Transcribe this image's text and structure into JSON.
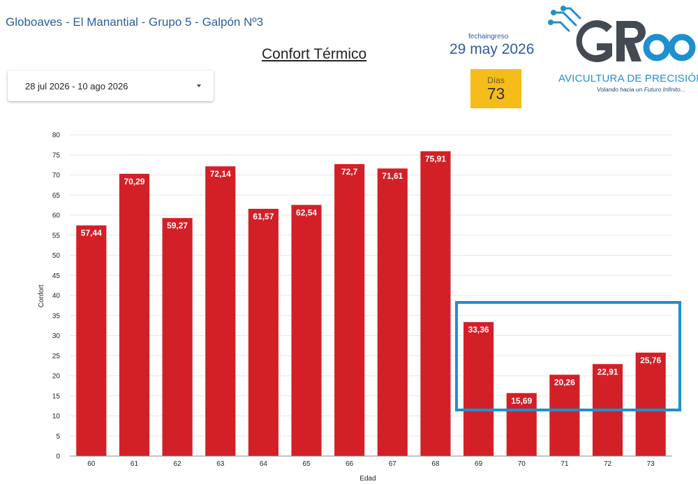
{
  "header": {
    "site_title": "Globoaves - El Manantial - Grupo 5 - Galpón Nº3",
    "page_title": "Confort Térmico"
  },
  "filter": {
    "date_range": "28 jul 2026 - 10 ago 2026"
  },
  "scorecard_fecha": {
    "label": "fechaingreso",
    "value": "29 may 2026"
  },
  "scorecard_dias": {
    "label": "Días",
    "value": "73"
  },
  "logo": {
    "tagline": "AVICULTURA DE PRECISIÓN",
    "slogan": "Volando hacia un Futuro Infinito..."
  },
  "colors": {
    "bar": "#d32027",
    "accent_blue": "#2c5d9c",
    "highlight": "#1e8fd0",
    "dias_bg": "#f6bc1a"
  },
  "chart_data": {
    "type": "bar",
    "title": "",
    "xlabel": "Edad",
    "ylabel": "Confort",
    "ylim": [
      0,
      80
    ],
    "ytick_step": 5,
    "grid": true,
    "categories": [
      "60",
      "61",
      "62",
      "63",
      "64",
      "65",
      "66",
      "67",
      "68",
      "69",
      "70",
      "71",
      "72",
      "73"
    ],
    "values": [
      57.44,
      70.29,
      59.27,
      72.14,
      61.57,
      62.54,
      72.7,
      71.61,
      75.91,
      33.36,
      15.69,
      20.26,
      22.91,
      25.76
    ],
    "labels": [
      "57,44",
      "70,29",
      "59,27",
      "72,14",
      "61,57",
      "62,54",
      "72,7",
      "71,61",
      "75,91",
      "33,36",
      "15,69",
      "20,26",
      "22,91",
      "25,76"
    ]
  }
}
